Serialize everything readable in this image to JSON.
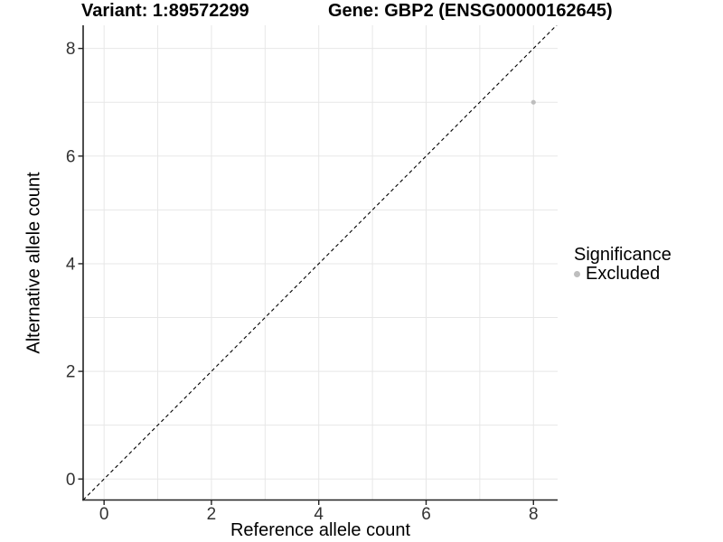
{
  "chart_data": {
    "type": "scatter",
    "title_left": "Variant: 1:89572299",
    "title_right": "Gene: GBP2 (ENSG00000162645)",
    "xlabel": "Reference allele count",
    "ylabel": "Alternative allele count",
    "xlim": [
      -0.39,
      8.45
    ],
    "ylim": [
      -0.39,
      8.43
    ],
    "xticks": [
      0,
      2,
      4,
      6,
      8
    ],
    "yticks": [
      0,
      2,
      4,
      6,
      8
    ],
    "xgrid": [
      0,
      1,
      2,
      3,
      4,
      5,
      6,
      7,
      8
    ],
    "ygrid": [
      0,
      1,
      2,
      3,
      4,
      5,
      6,
      7,
      8
    ],
    "grid": "on",
    "grid_color": "#e7e7e7",
    "axis_color": "#222222",
    "tick_label_color": "#333333",
    "identity_line": {
      "style": "dashed",
      "slope": 1,
      "intercept": 0,
      "color": "#000000"
    },
    "series": [
      {
        "name": "Excluded",
        "marker": "circle",
        "color": "#bebebe",
        "points": [
          [
            8,
            7
          ]
        ]
      }
    ],
    "legend": {
      "title": "Significance",
      "position": "right",
      "items": [
        {
          "label": "Excluded",
          "marker": "circle",
          "color": "#bebebe"
        }
      ]
    }
  }
}
